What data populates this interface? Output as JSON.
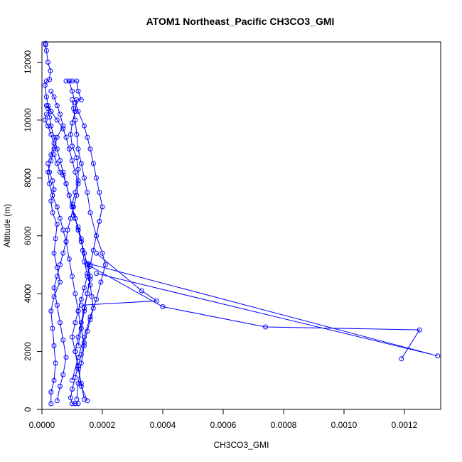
{
  "chart_data": {
    "type": "line",
    "title": "ATOM1 Northeast_Pacific CH3CO3_GMI",
    "xlabel": "CH3CO3_GMI",
    "ylabel": "Altitude (m)",
    "xlim": [
      0,
      0.00132
    ],
    "ylim": [
      0,
      12700
    ],
    "x_ticks": [
      0,
      0.0002,
      0.0004,
      0.0006,
      0.0008,
      0.001,
      0.0012
    ],
    "x_tick_labels": [
      "0.0000",
      "0.0002",
      "0.0004",
      "0.0006",
      "0.0008",
      "0.0010",
      "0.0012"
    ],
    "y_ticks": [
      0,
      2000,
      4000,
      6000,
      8000,
      10000,
      12000
    ],
    "y_tick_labels": [
      "0",
      "2000",
      "4000",
      "6000",
      "8000",
      "10000",
      "12000"
    ],
    "grid": false,
    "series": [
      {
        "x": [
          1.2e-05,
          1.2e-05,
          1.5e-05,
          2e-05,
          2.8e-05,
          2.5e-05,
          1.5e-05,
          1e-05,
          1.5e-05,
          2e-05,
          3e-05,
          1.5e-05,
          1e-05,
          2e-05,
          3e-05,
          4e-05,
          3e-05,
          2e-05,
          2.5e-05,
          3.5e-05,
          4e-05,
          3e-05,
          3.5e-05,
          5e-05,
          4.5e-05,
          4e-05,
          5e-05,
          6e-05,
          4e-05,
          3e-05,
          3.5e-05,
          4e-05,
          4.5e-05,
          4e-05,
          3e-05,
          3e-05
        ],
        "y": [
          12650,
          12600,
          12400,
          12000,
          11700,
          11400,
          11350,
          11200,
          10800,
          10500,
          10300,
          10200,
          10000,
          9800,
          9500,
          9200,
          8800,
          8500,
          8200,
          7900,
          7600,
          7200,
          6800,
          6400,
          5900,
          5400,
          4900,
          4400,
          3900,
          3400,
          2800,
          2200,
          1600,
          1000,
          600,
          200
        ]
      },
      {
        "x": [
          8e-05,
          0.0001,
          0.000115,
          0.00012,
          0.00013,
          0.000115,
          0.00011,
          0.0001,
          9.5e-05,
          0.0001,
          0.000115,
          0.00012,
          0.00012,
          0.00011,
          0.0001,
          0.000105,
          0.00012,
          0.00013,
          0.000135,
          0.00014,
          0.00015,
          0.00016,
          0.000165,
          0.00017,
          0.00016,
          0.00015,
          0.00014,
          0.00013,
          0.00012,
          0.00011,
          0.0001,
          9.5e-05,
          0.0001,
          0.00011,
          0.00012
        ],
        "y": [
          11350,
          11350,
          11350,
          11000,
          10700,
          10700,
          10300,
          9900,
          9500,
          9100,
          8700,
          8300,
          7900,
          7500,
          7100,
          6700,
          6300,
          5900,
          5500,
          5100,
          4700,
          4300,
          3900,
          3500,
          3100,
          2700,
          2300,
          1900,
          1500,
          1100,
          700,
          400,
          200,
          200,
          200
        ]
      },
      {
        "x": [
          9e-05,
          0.0001,
          0.00011,
          0.00012,
          0.00014,
          0.00015,
          0.00016,
          0.00017,
          0.00018,
          0.00019,
          0.0002,
          0.00019,
          0.00018,
          0.00017,
          0.00016,
          0.00015,
          0.00014,
          0.00013,
          0.00012,
          0.00011,
          0.0001,
          0.00011,
          0.00012,
          0.00013,
          0.00015
        ],
        "y": [
          11350,
          11000,
          10600,
          10300,
          9800,
          9400,
          9000,
          8500,
          8000,
          7500,
          7000,
          6500,
          6000,
          5500,
          5000,
          4600,
          4200,
          3800,
          3400,
          3000,
          2500,
          2000,
          1500,
          800,
          300
        ]
      },
      {
        "x": [
          0.0001,
          0.000105,
          0.00011,
          0.000115,
          0.00012,
          0.00013,
          0.00014,
          0.00015,
          0.00016,
          0.00018,
          0.0002,
          0.00021,
          0.000195,
          0.00018,
          0.00016,
          0.00014,
          0.00012,
          0.0001
        ],
        "y": [
          10700,
          10400,
          10000,
          9500,
          9000,
          8500,
          8000,
          7500,
          6800,
          6000,
          5400,
          5000,
          4400,
          3800,
          3200,
          2500,
          1800,
          1000
        ]
      },
      {
        "x": [
          0.00018,
          0.00033,
          0.00038,
          0.00013
        ],
        "y": [
          5400,
          4100,
          3750,
          3600
        ]
      },
      {
        "x": [
          0.00016,
          0.0004,
          0.00074,
          0.00125,
          0.00119
        ],
        "y": [
          4950,
          3550,
          2850,
          2750,
          1750
        ]
      },
      {
        "x": [
          0.00018,
          0.00131,
          0.00015
        ],
        "y": [
          4700,
          1850,
          5050
        ]
      },
      {
        "x": [
          3e-05,
          4e-05,
          5e-05,
          6e-05,
          7e-05,
          5e-05,
          4e-05,
          3e-05,
          2e-05,
          2.5e-05,
          3.5e-05,
          5e-05,
          6e-05,
          7e-05,
          8e-05,
          7e-05,
          6e-05,
          5e-05,
          4e-05,
          5e-05,
          6e-05,
          7e-05,
          8e-05,
          7e-05,
          6e-05,
          5e-05
        ],
        "y": [
          11000,
          10800,
          10500,
          10200,
          9800,
          9400,
          9000,
          8600,
          8200,
          7800,
          7400,
          7000,
          6600,
          6200,
          5800,
          5400,
          5000,
          4600,
          4200,
          3600,
          3000,
          2400,
          1800,
          1200,
          800,
          300
        ]
      },
      {
        "x": [
          1.5e-05,
          3e-05,
          5e-05,
          7e-05,
          8e-05,
          9e-05,
          0.0001,
          0.00011,
          0.00012,
          0.000115,
          0.000105,
          9.5e-05,
          8.5e-05,
          8e-05,
          9e-05,
          0.0001,
          0.00011,
          0.00012,
          0.00013,
          0.00014,
          0.00013,
          0.00012,
          0.000115
        ],
        "y": [
          10500,
          10300,
          10000,
          9700,
          9400,
          9000,
          8600,
          8200,
          7800,
          7400,
          7000,
          6600,
          6200,
          5800,
          5200,
          4600,
          4000,
          3400,
          2800,
          2200,
          1600,
          900,
          350
        ]
      },
      {
        "x": [
          2e-05,
          2.5e-05,
          3e-05,
          4e-05,
          5e-05,
          6e-05,
          7e-05,
          8e-05,
          9e-05,
          0.0001,
          0.00011,
          0.00012,
          0.00013,
          0.00014,
          0.00015,
          0.00016,
          0.00015,
          0.00014,
          0.00013,
          0.00012
        ],
        "y": [
          10400,
          10100,
          9800,
          9400,
          9000,
          8600,
          8200,
          7800,
          7400,
          7000,
          6600,
          6200,
          5800,
          5400,
          5000,
          4600,
          4000,
          3400,
          2800,
          2200
        ]
      },
      {
        "x": [
          4e-05,
          5e-05,
          6e-05,
          7e-05,
          8e-05,
          9e-05,
          0.0001,
          0.00011,
          0.00012,
          0.00013,
          0.00014,
          0.00015,
          0.00016,
          0.00015,
          0.00014,
          0.00013,
          0.00012,
          0.00011,
          0.00012,
          0.00013,
          0.00014
        ],
        "y": [
          8800,
          8500,
          8200,
          8100,
          7800,
          7400,
          7000,
          6600,
          6200,
          5800,
          5400,
          5000,
          4500,
          4000,
          3500,
          3000,
          2500,
          2000,
          1400,
          900,
          350
        ]
      }
    ]
  }
}
